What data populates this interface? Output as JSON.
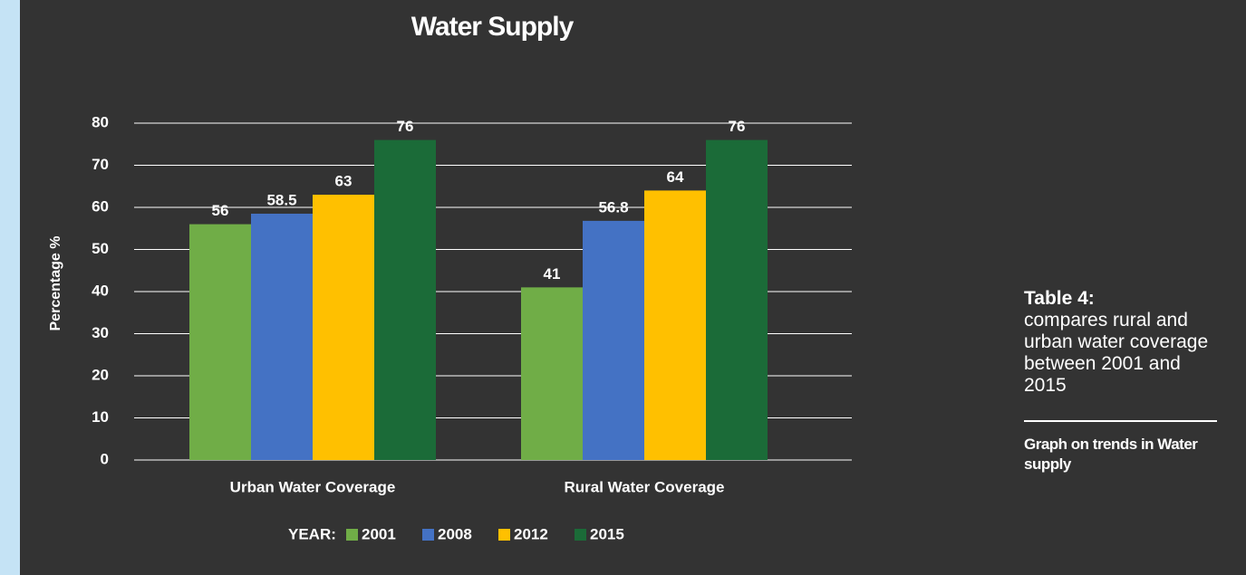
{
  "chart_data": {
    "type": "bar",
    "title": "Water Supply",
    "y_label": "Percentage %",
    "categories": [
      "Urban Water Coverage",
      "Rural Water Coverage"
    ],
    "legend_title": "YEAR:",
    "series": [
      {
        "name": "2001",
        "color": "#70ad47",
        "values": [
          56,
          41
        ]
      },
      {
        "name": "2008",
        "color": "#4472c4",
        "values": [
          58.5,
          56.8
        ]
      },
      {
        "name": "2012",
        "color": "#ffc000",
        "values": [
          63,
          64
        ]
      },
      {
        "name": "2015",
        "color": "#1b6b38",
        "values": [
          76,
          76
        ]
      }
    ],
    "ylim": [
      0,
      80
    ],
    "yticks": [
      0,
      10,
      20,
      30,
      40,
      50,
      60,
      70,
      80
    ],
    "grid": true,
    "legend": "bottom"
  },
  "side_note": {
    "heading": "Table 4:",
    "text": "compares rural and urban water coverage between 2001 and 2015",
    "caption": "Graph on trends in Water supply"
  }
}
